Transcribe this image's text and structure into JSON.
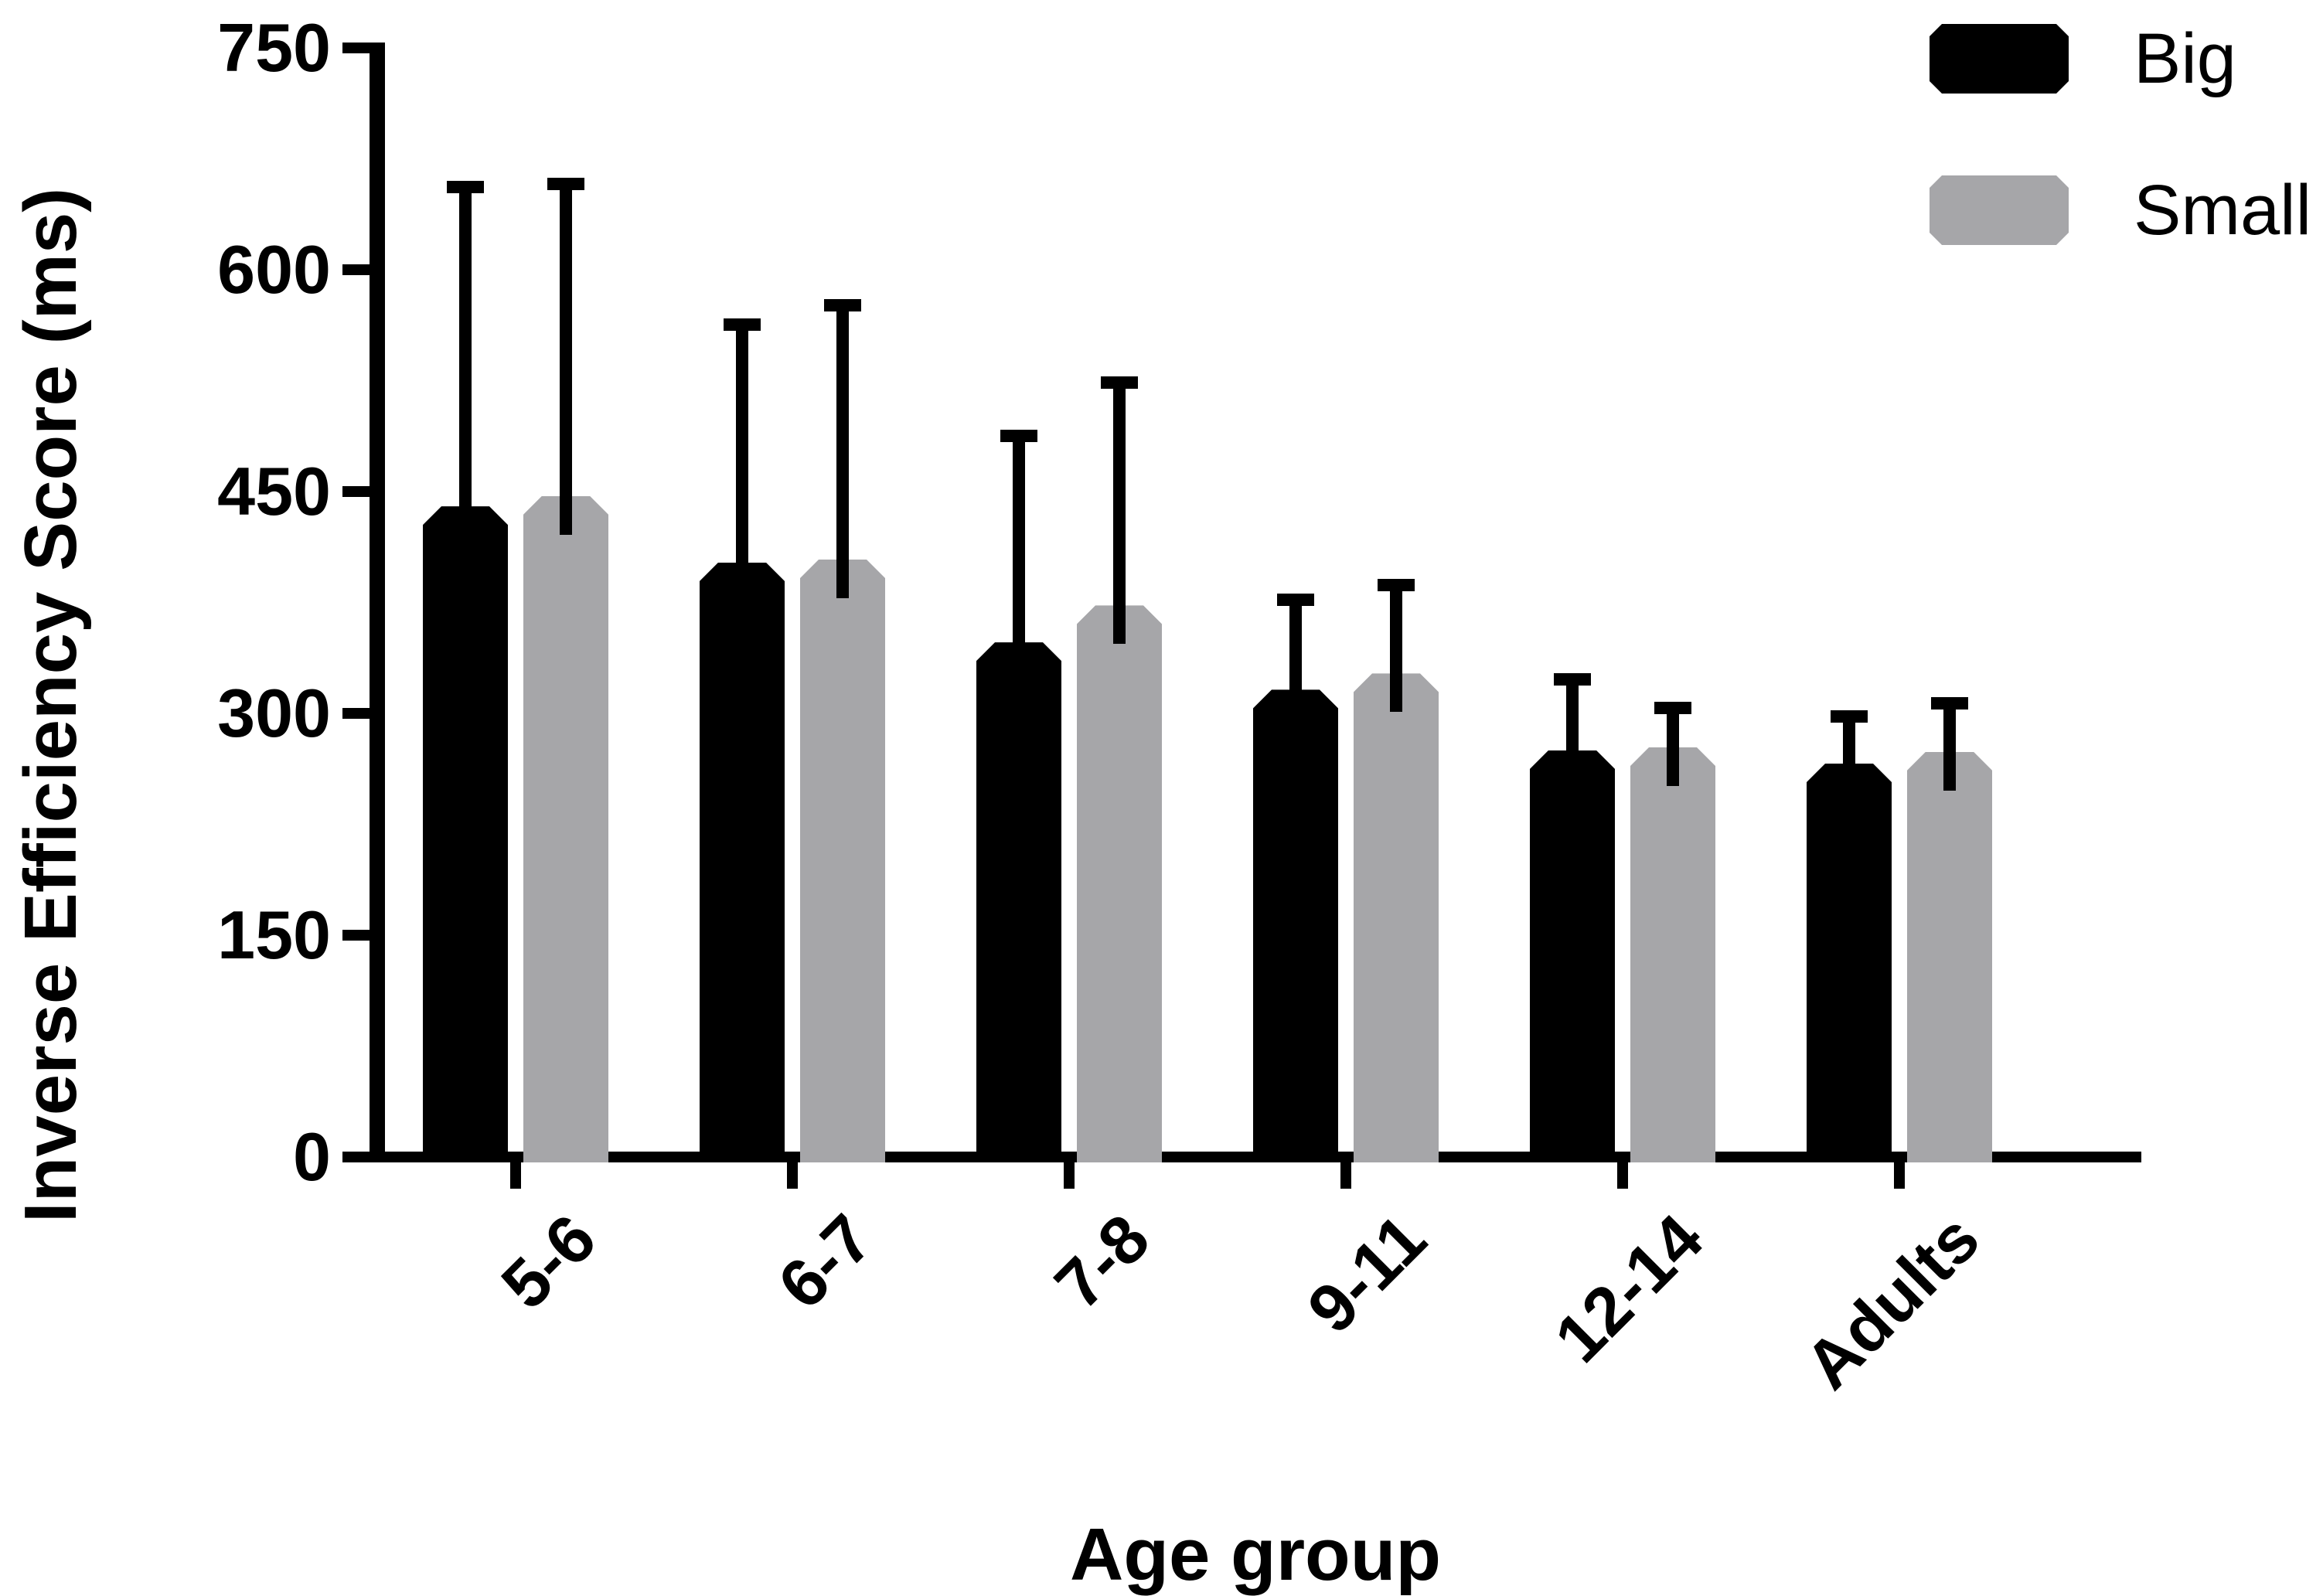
{
  "figure": {
    "y_axis_title": "Inverse Efficiency Score (ms)",
    "x_axis_title": "Age group"
  },
  "chart_data": {
    "type": "bar",
    "title": "",
    "xlabel": "Age group",
    "ylabel": "Inverse Efficiency Score (ms)",
    "categories": [
      "5-6",
      "6-7",
      "7-8",
      "9-11",
      "12-14",
      "Adults"
    ],
    "series": [
      {
        "name": "Big",
        "color": "#000000",
        "values": [
          440,
          402,
          348,
          316,
          275,
          266
        ],
        "errors_upper": [
          220,
          165,
          144,
          65,
          52,
          36
        ]
      },
      {
        "name": "Small",
        "color": "#A6A6A9",
        "values": [
          447,
          404,
          373,
          327,
          277,
          274
        ],
        "errors_upper": [
          215,
          176,
          155,
          64,
          31,
          37
        ]
      }
    ],
    "ylim": [
      0,
      750
    ],
    "yticks": [
      0,
      150,
      300,
      450,
      600,
      750
    ],
    "grid": false,
    "error_bars": "upper only, capped",
    "legend_position": "top-right"
  }
}
